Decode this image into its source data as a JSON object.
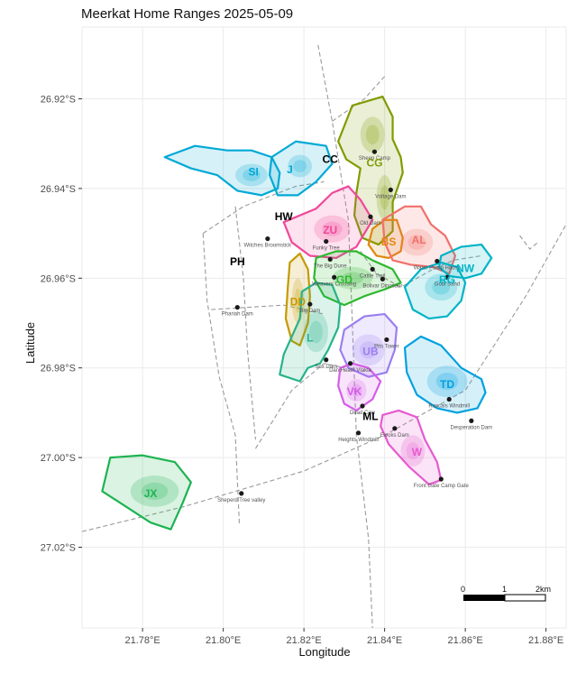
{
  "title": "Meerkat Home Ranges 2025-05-09",
  "axes": {
    "xlabel": "Longitude",
    "ylabel": "Latitude",
    "x_ticks": [
      {
        "value": 21.78,
        "label": "21.78°E"
      },
      {
        "value": 21.8,
        "label": "21.80°E"
      },
      {
        "value": 21.82,
        "label": "21.82°E"
      },
      {
        "value": 21.84,
        "label": "21.84°E"
      },
      {
        "value": 21.86,
        "label": "21.86°E"
      },
      {
        "value": 21.88,
        "label": "21.88°E"
      }
    ],
    "y_ticks": [
      {
        "value": -26.92,
        "label": "26.92°S"
      },
      {
        "value": -26.94,
        "label": "26.94°S"
      },
      {
        "value": -26.96,
        "label": "26.96°S"
      },
      {
        "value": -26.98,
        "label": "26.98°S"
      },
      {
        "value": -27.0,
        "label": "27.00°S"
      },
      {
        "value": -27.02,
        "label": "27.02°S"
      }
    ],
    "xlim": [
      21.765,
      21.885
    ],
    "ylim": [
      -27.038,
      -26.904
    ]
  },
  "scale_bar": {
    "labels": [
      "0",
      "1",
      "2km"
    ]
  },
  "landmarks": [
    {
      "name": "Sheep Camp",
      "lon": 21.8375,
      "lat": -26.9318
    },
    {
      "name": "Voltage Dam",
      "lon": 21.8415,
      "lat": -26.9403
    },
    {
      "name": "Old Dam",
      "lon": 21.8365,
      "lat": -26.9463
    },
    {
      "name": "Witches Broomstick",
      "lon": 21.811,
      "lat": -26.9512
    },
    {
      "name": "Funky Tree",
      "lon": 21.8255,
      "lat": -26.9518
    },
    {
      "name": "The Big Dune",
      "lon": 21.8265,
      "lat": -26.9558
    },
    {
      "name": "Cattle Trail",
      "lon": 21.837,
      "lat": -26.958
    },
    {
      "name": "Water Pump House",
      "lon": 21.853,
      "lat": -26.9562
    },
    {
      "name": "Gobi Sand",
      "lon": 21.8555,
      "lat": -26.9598
    },
    {
      "name": "Weavers Crossing",
      "lon": 21.8275,
      "lat": -26.9598
    },
    {
      "name": "Bolivar Dinosaur",
      "lon": 21.8395,
      "lat": -26.9602
    },
    {
      "name": "Big Dam",
      "lon": 21.8215,
      "lat": -26.9658
    },
    {
      "name": "Phariah Dam",
      "lon": 21.8035,
      "lat": -26.9665
    },
    {
      "name": "Pits Tower",
      "lon": 21.8405,
      "lat": -26.9737
    },
    {
      "name": "Sox Dam",
      "lon": 21.8255,
      "lat": -26.9782
    },
    {
      "name": "Dan Heath Vlakte",
      "lon": 21.8315,
      "lat": -26.979
    },
    {
      "name": "Rascals Windmill",
      "lon": 21.856,
      "lat": -26.987
    },
    {
      "name": "Dead Cow",
      "lon": 21.8345,
      "lat": -26.9885
    },
    {
      "name": "Ewoks Dam",
      "lon": 21.8425,
      "lat": -26.9935
    },
    {
      "name": "Desperation Dam",
      "lon": 21.8615,
      "lat": -26.9918
    },
    {
      "name": "Heights Windmill",
      "lon": 21.8335,
      "lat": -26.9945
    },
    {
      "name": "Front Gate Camp Gate",
      "lon": 21.854,
      "lat": -27.0048
    },
    {
      "name": "Sheperd Tree valley",
      "lon": 21.8045,
      "lat": -27.008
    }
  ],
  "groups": [
    {
      "code": "CG",
      "color": "#7f9c00",
      "label_lon": 21.8375,
      "label_lat": -26.9343,
      "polygon": [
        [
          21.8285,
          -26.9295
        ],
        [
          21.832,
          -26.9215
        ],
        [
          21.8395,
          -26.9195
        ],
        [
          21.842,
          -26.924
        ],
        [
          21.842,
          -26.929
        ],
        [
          21.844,
          -26.933
        ],
        [
          21.8445,
          -26.9365
        ],
        [
          21.842,
          -26.943
        ],
        [
          21.842,
          -26.9495
        ],
        [
          21.8385,
          -26.9525
        ],
        [
          21.8345,
          -26.951
        ],
        [
          21.8325,
          -26.946
        ],
        [
          21.833,
          -26.941
        ],
        [
          21.834,
          -26.9355
        ],
        [
          21.8305,
          -26.9335
        ]
      ]
    },
    {
      "code": "SI",
      "color": "#00a9d6",
      "label_lon": 21.8075,
      "label_lat": -26.9363,
      "polygon": [
        [
          21.7855,
          -26.933
        ],
        [
          21.793,
          -26.9305
        ],
        [
          21.801,
          -26.9315
        ],
        [
          21.807,
          -26.9315
        ],
        [
          21.812,
          -26.933
        ],
        [
          21.814,
          -26.9365
        ],
        [
          21.8135,
          -26.94
        ],
        [
          21.8095,
          -26.9415
        ],
        [
          21.8035,
          -26.9405
        ],
        [
          21.7985,
          -26.937
        ],
        [
          21.792,
          -26.9355
        ]
      ]
    },
    {
      "code": "J",
      "color": "#00a9d6",
      "label_lon": 21.8165,
      "label_lat": -26.9358,
      "polygon": [
        [
          21.812,
          -26.933
        ],
        [
          21.818,
          -26.9295
        ],
        [
          21.8255,
          -26.9305
        ],
        [
          21.827,
          -26.9345
        ],
        [
          21.823,
          -26.9385
        ],
        [
          21.8185,
          -26.9415
        ],
        [
          21.8135,
          -26.9415
        ],
        [
          21.8115,
          -26.937
        ]
      ]
    },
    {
      "code": "ZU",
      "color": "#f0489a",
      "label_lon": 21.8265,
      "label_lat": -26.9493,
      "polygon": [
        [
          21.815,
          -26.9475
        ],
        [
          21.823,
          -26.9445
        ],
        [
          21.827,
          -26.941
        ],
        [
          21.831,
          -26.9395
        ],
        [
          21.834,
          -26.9425
        ],
        [
          21.837,
          -26.947
        ],
        [
          21.833,
          -26.953
        ],
        [
          21.828,
          -26.9555
        ],
        [
          21.8215,
          -26.955
        ],
        [
          21.817,
          -26.952
        ]
      ]
    },
    {
      "code": "BS",
      "color": "#e0870f",
      "label_lon": 21.841,
      "label_lat": -26.9519,
      "polygon": [
        [
          21.837,
          -26.949
        ],
        [
          21.84,
          -26.947
        ],
        [
          21.843,
          -26.947
        ],
        [
          21.8445,
          -26.951
        ],
        [
          21.844,
          -26.954
        ],
        [
          21.841,
          -26.9555
        ],
        [
          21.838,
          -26.955
        ],
        [
          21.836,
          -26.9525
        ]
      ]
    },
    {
      "code": "AL",
      "color": "#f0706a",
      "label_lon": 21.8485,
      "label_lat": -26.9515,
      "polygon": [
        [
          21.8395,
          -26.947
        ],
        [
          21.845,
          -26.944
        ],
        [
          21.849,
          -26.944
        ],
        [
          21.8515,
          -26.948
        ],
        [
          21.855,
          -26.9505
        ],
        [
          21.8575,
          -26.955
        ],
        [
          21.856,
          -26.959
        ],
        [
          21.852,
          -26.9575
        ],
        [
          21.8465,
          -26.957
        ],
        [
          21.842,
          -26.956
        ],
        [
          21.84,
          -26.952
        ]
      ]
    },
    {
      "code": "GD",
      "color": "#2db82e",
      "label_lon": 21.83,
      "label_lat": -26.9603,
      "polygon": [
        [
          21.823,
          -26.9555
        ],
        [
          21.828,
          -26.954
        ],
        [
          21.833,
          -26.954
        ],
        [
          21.837,
          -26.956
        ],
        [
          21.842,
          -26.958
        ],
        [
          21.844,
          -26.961
        ],
        [
          21.84,
          -26.9625
        ],
        [
          21.835,
          -26.964
        ],
        [
          21.83,
          -26.966
        ],
        [
          21.825,
          -26.964
        ],
        [
          21.8225,
          -26.96
        ]
      ]
    },
    {
      "code": "NW",
      "color": "#00b3c7",
      "label_lon": 21.86,
      "label_lat": -26.9578,
      "polygon": [
        [
          21.854,
          -26.955
        ],
        [
          21.859,
          -26.953
        ],
        [
          21.864,
          -26.9525
        ],
        [
          21.8665,
          -26.9555
        ],
        [
          21.864,
          -26.959
        ],
        [
          21.86,
          -26.96
        ],
        [
          21.856,
          -26.9595
        ],
        [
          21.8535,
          -26.9575
        ]
      ]
    },
    {
      "code": "RG",
      "color": "#00b3c7",
      "label_lon": 21.8555,
      "label_lat": -26.9603,
      "polygon": [
        [
          21.845,
          -26.962
        ],
        [
          21.849,
          -26.958
        ],
        [
          21.854,
          -26.9565
        ],
        [
          21.858,
          -26.9575
        ],
        [
          21.86,
          -26.961
        ],
        [
          21.859,
          -26.965
        ],
        [
          21.8555,
          -26.9685
        ],
        [
          21.851,
          -26.969
        ],
        [
          21.847,
          -26.967
        ]
      ]
    },
    {
      "code": "DD",
      "color": "#c49a00",
      "label_lon": 21.8185,
      "label_lat": -26.9653,
      "polygon": [
        [
          21.8165,
          -26.9565
        ],
        [
          21.819,
          -26.9545
        ],
        [
          21.821,
          -26.958
        ],
        [
          21.8215,
          -26.964
        ],
        [
          21.821,
          -26.97
        ],
        [
          21.819,
          -26.975
        ],
        [
          21.817,
          -26.974
        ],
        [
          21.8155,
          -26.969
        ],
        [
          21.816,
          -26.962
        ]
      ]
    },
    {
      "code": "L",
      "color": "#26b38a",
      "label_lon": 21.8215,
      "label_lat": -26.9733,
      "polygon": [
        [
          21.8195,
          -26.963
        ],
        [
          21.823,
          -26.961
        ],
        [
          21.827,
          -26.9615
        ],
        [
          21.829,
          -26.966
        ],
        [
          21.8285,
          -26.971
        ],
        [
          21.826,
          -26.976
        ],
        [
          21.824,
          -26.979
        ],
        [
          21.821,
          -26.98
        ],
        [
          21.819,
          -26.983
        ],
        [
          21.814,
          -26.9815
        ],
        [
          21.815,
          -26.977
        ],
        [
          21.817,
          -26.973
        ],
        [
          21.819,
          -26.969
        ]
      ]
    },
    {
      "code": "UB",
      "color": "#9b7ef0",
      "label_lon": 21.8365,
      "label_lat": -26.9763,
      "polygon": [
        [
          21.83,
          -26.9715
        ],
        [
          21.835,
          -26.9685
        ],
        [
          21.84,
          -26.968
        ],
        [
          21.843,
          -26.971
        ],
        [
          21.8425,
          -26.976
        ],
        [
          21.8405,
          -26.981
        ],
        [
          21.836,
          -26.982
        ],
        [
          21.831,
          -26.98
        ],
        [
          21.829,
          -26.976
        ]
      ]
    },
    {
      "code": "VK",
      "color": "#d45ee8",
      "label_lon": 21.8325,
      "label_lat": -26.9853,
      "polygon": [
        [
          21.829,
          -26.98
        ],
        [
          21.832,
          -26.979
        ],
        [
          21.836,
          -26.98
        ],
        [
          21.839,
          -26.983
        ],
        [
          21.837,
          -26.987
        ],
        [
          21.833,
          -26.9895
        ],
        [
          21.83,
          -26.988
        ],
        [
          21.8285,
          -26.984
        ]
      ]
    },
    {
      "code": "TD",
      "color": "#00a1e0",
      "label_lon": 21.8555,
      "label_lat": -26.9837,
      "polygon": [
        [
          21.845,
          -26.9755
        ],
        [
          21.849,
          -26.973
        ],
        [
          21.854,
          -26.975
        ],
        [
          21.859,
          -26.98
        ],
        [
          21.864,
          -26.9825
        ],
        [
          21.865,
          -26.9855
        ],
        [
          21.863,
          -26.989
        ],
        [
          21.858,
          -26.99
        ],
        [
          21.853,
          -26.989
        ],
        [
          21.848,
          -26.986
        ],
        [
          21.8455,
          -26.981
        ]
      ]
    },
    {
      "code": "W",
      "color": "#e65ad0",
      "label_lon": 21.848,
      "label_lat": -26.9988,
      "polygon": [
        [
          21.8395,
          -26.9905
        ],
        [
          21.8435,
          -26.9895
        ],
        [
          21.848,
          -26.991
        ],
        [
          21.85,
          -26.996
        ],
        [
          21.853,
          -27.001
        ],
        [
          21.854,
          -27.005
        ],
        [
          21.851,
          -27.006
        ],
        [
          21.846,
          -27.002
        ],
        [
          21.841,
          -26.997
        ],
        [
          21.839,
          -26.993
        ]
      ]
    },
    {
      "code": "JX",
      "color": "#1db351",
      "label_lon": 21.782,
      "label_lat": -27.008,
      "polygon": [
        [
          21.77,
          -27.0075
        ],
        [
          21.772,
          -27.0
        ],
        [
          21.78,
          -26.9995
        ],
        [
          21.788,
          -27.001
        ],
        [
          21.792,
          -27.0055
        ],
        [
          21.79,
          -27.01
        ],
        [
          21.787,
          -27.016
        ],
        [
          21.782,
          -27.0145
        ],
        [
          21.776,
          -27.011
        ]
      ]
    }
  ],
  "bold_labels": [
    {
      "code": "CC",
      "lon": 21.8265,
      "lat": -26.9335
    },
    {
      "code": "HW",
      "lon": 21.815,
      "lat": -26.9463
    },
    {
      "code": "PH",
      "lon": 21.8035,
      "lat": -26.9563
    },
    {
      "code": "ML",
      "lon": 21.8365,
      "lat": -26.9908
    }
  ],
  "roads": [
    [
      [
        21.8235,
        -26.908
      ],
      [
        21.827,
        -26.925
      ],
      [
        21.831,
        -26.947
      ],
      [
        21.832,
        -26.97
      ],
      [
        21.833,
        -26.995
      ],
      [
        21.836,
        -27.018
      ],
      [
        21.837,
        -27.038
      ]
    ],
    [
      [
        21.765,
        -27.0165
      ],
      [
        21.79,
        -27.011
      ],
      [
        21.82,
        -27.003
      ],
      [
        21.84,
        -26.995
      ],
      [
        21.86,
        -26.985
      ],
      [
        21.875,
        -26.964
      ],
      [
        21.885,
        -26.948
      ]
    ],
    [
      [
        21.795,
        -26.95
      ],
      [
        21.805,
        -26.944
      ],
      [
        21.818,
        -26.9395
      ],
      [
        21.825,
        -26.9385
      ]
    ],
    [
      [
        21.795,
        -26.95
      ],
      [
        21.796,
        -26.965
      ],
      [
        21.799,
        -26.982
      ],
      [
        21.803,
        -26.995
      ],
      [
        21.804,
        -27.015
      ]
    ],
    [
      [
        21.803,
        -26.944
      ],
      [
        21.805,
        -26.96
      ],
      [
        21.806,
        -26.976
      ],
      [
        21.808,
        -26.996
      ]
    ],
    [
      [
        21.797,
        -26.967
      ],
      [
        21.815,
        -26.966
      ],
      [
        21.825,
        -26.968
      ]
    ],
    [
      [
        21.808,
        -26.998
      ],
      [
        21.817,
        -26.985
      ],
      [
        21.825,
        -26.979
      ],
      [
        21.83,
        -26.98
      ]
    ],
    [
      [
        21.827,
        -26.925
      ],
      [
        21.835,
        -26.92
      ],
      [
        21.84,
        -26.915
      ]
    ],
    [
      [
        21.834,
        -26.954
      ],
      [
        21.838,
        -26.959
      ],
      [
        21.844,
        -26.962
      ],
      [
        21.852,
        -26.958
      ],
      [
        21.857,
        -26.956
      ],
      [
        21.864,
        -26.955
      ]
    ],
    [
      [
        21.8735,
        -26.9505
      ],
      [
        21.876,
        -26.9535
      ],
      [
        21.878,
        -26.952
      ]
    ]
  ],
  "density_blobs": [
    {
      "color": "#00a9d6",
      "lon": 21.807,
      "lat": -26.937,
      "rx": 0.004,
      "ry": 0.0025
    },
    {
      "color": "#00a9d6",
      "lon": 21.819,
      "lat": -26.935,
      "rx": 0.003,
      "ry": 0.0025
    },
    {
      "color": "#7f9c00",
      "lon": 21.837,
      "lat": -26.928,
      "rx": 0.003,
      "ry": 0.004
    },
    {
      "color": "#7f9c00",
      "lon": 21.84,
      "lat": -26.942,
      "rx": 0.002,
      "ry": 0.005
    },
    {
      "color": "#f0489a",
      "lon": 21.827,
      "lat": -26.949,
      "rx": 0.0045,
      "ry": 0.003
    },
    {
      "color": "#f0706a",
      "lon": 21.848,
      "lat": -26.952,
      "rx": 0.004,
      "ry": 0.003
    },
    {
      "color": "#2db82e",
      "lon": 21.832,
      "lat": -26.96,
      "rx": 0.005,
      "ry": 0.0025
    },
    {
      "color": "#00b3c7",
      "lon": 21.854,
      "lat": -26.962,
      "rx": 0.004,
      "ry": 0.003
    },
    {
      "color": "#c49a00",
      "lon": 21.8185,
      "lat": -26.965,
      "rx": 0.0015,
      "ry": 0.005
    },
    {
      "color": "#26b38a",
      "lon": 21.823,
      "lat": -26.972,
      "rx": 0.003,
      "ry": 0.0045
    },
    {
      "color": "#9b7ef0",
      "lon": 21.836,
      "lat": -26.976,
      "rx": 0.004,
      "ry": 0.0035
    },
    {
      "color": "#d45ee8",
      "lon": 21.833,
      "lat": -26.985,
      "rx": 0.0025,
      "ry": 0.0025
    },
    {
      "color": "#00a1e0",
      "lon": 21.8555,
      "lat": -26.983,
      "rx": 0.005,
      "ry": 0.0035
    },
    {
      "color": "#e65ad0",
      "lon": 21.847,
      "lat": -26.9985,
      "rx": 0.003,
      "ry": 0.0035
    },
    {
      "color": "#1db351",
      "lon": 21.783,
      "lat": -27.0075,
      "rx": 0.006,
      "ry": 0.0035
    }
  ]
}
